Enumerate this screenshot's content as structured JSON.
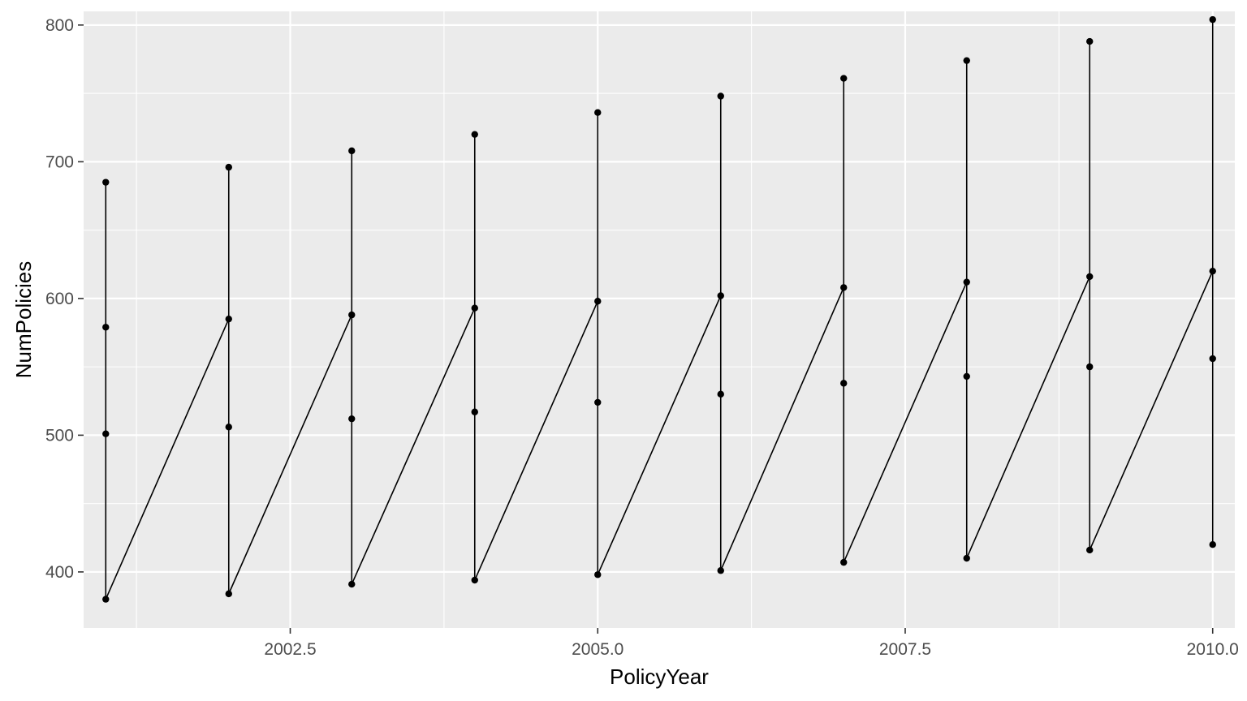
{
  "chart_data": {
    "type": "line",
    "xlabel": "PolicyYear",
    "ylabel": "NumPolicies",
    "xlim": [
      2000.82,
      2010.18
    ],
    "ylim": [
      359,
      810
    ],
    "x_ticks": [
      2002.5,
      2005.0,
      2007.5,
      2010.0
    ],
    "x_tick_labels": [
      "2002.5",
      "2005.0",
      "2007.5",
      "2010.0"
    ],
    "y_ticks": [
      400,
      500,
      600,
      700,
      800
    ],
    "y_tick_labels": [
      "400",
      "500",
      "600",
      "700",
      "800"
    ],
    "grid": true,
    "background": "#ebebeb",
    "grid_color": "#ffffff",
    "line_color": "#000000",
    "point_color": "#000000",
    "series": [
      {
        "x": [
          2001,
          2001,
          2001,
          2001,
          2002,
          2002,
          2002,
          2002,
          2003,
          2003,
          2003,
          2003,
          2004,
          2004,
          2004,
          2004,
          2005,
          2005,
          2005,
          2005,
          2006,
          2006,
          2006,
          2006,
          2007,
          2007,
          2007,
          2007,
          2008,
          2008,
          2008,
          2008,
          2009,
          2009,
          2009,
          2009,
          2010,
          2010,
          2010,
          2010
        ],
        "y": [
          685,
          579,
          501,
          380,
          585,
          696,
          506,
          384,
          588,
          708,
          512,
          391,
          593,
          720,
          517,
          394,
          598,
          736,
          524,
          398,
          602,
          748,
          530,
          401,
          608,
          761,
          538,
          407,
          612,
          774,
          543,
          410,
          616,
          788,
          550,
          416,
          620,
          804,
          556,
          420
        ]
      }
    ]
  }
}
